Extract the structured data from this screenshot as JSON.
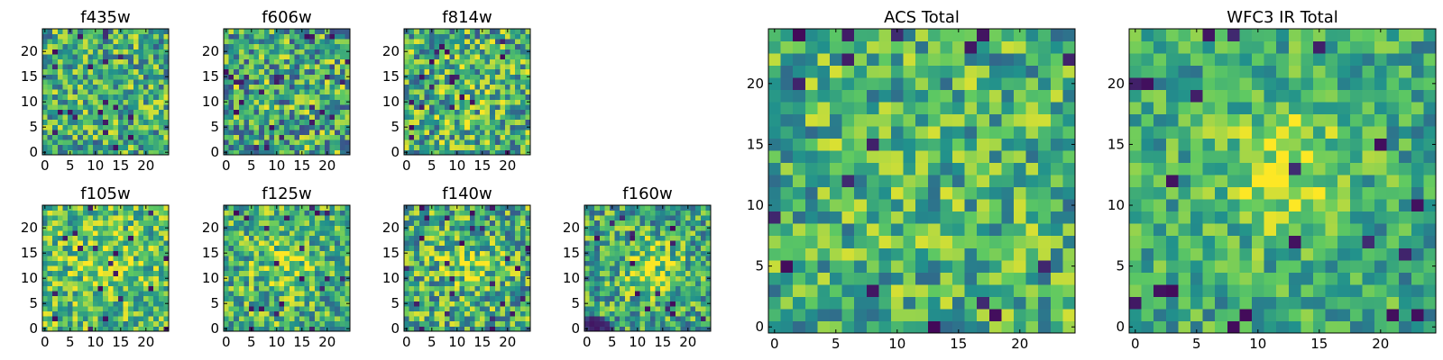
{
  "figure": {
    "colormap": "viridis",
    "colormap_stops": [
      "#440154",
      "#3b528b",
      "#21918c",
      "#5ec962",
      "#fde725"
    ]
  },
  "chart_data": [
    {
      "type": "heatmap",
      "title": "f435w",
      "grid_size": 25,
      "xticks": [
        "0",
        "5",
        "10",
        "15",
        "20"
      ],
      "yticks": [
        "0",
        "5",
        "10",
        "15",
        "20"
      ],
      "xlim": [
        -0.5,
        24.5
      ],
      "ylim": [
        -0.5,
        24.5
      ],
      "seed": 11,
      "base": 0.62,
      "noise": 0.34,
      "blob": 0.0,
      "blob_center": [
        12,
        12
      ],
      "blob_width": 6,
      "corner_dark": 0
    },
    {
      "type": "heatmap",
      "title": "f606w",
      "grid_size": 25,
      "xticks": [
        "0",
        "5",
        "10",
        "15",
        "20"
      ],
      "yticks": [
        "0",
        "5",
        "10",
        "15",
        "20"
      ],
      "xlim": [
        -0.5,
        24.5
      ],
      "ylim": [
        -0.5,
        24.5
      ],
      "seed": 23,
      "base": 0.6,
      "noise": 0.38,
      "blob": 0.0,
      "blob_center": [
        12,
        12
      ],
      "blob_width": 6,
      "corner_dark": 0
    },
    {
      "type": "heatmap",
      "title": "f814w",
      "grid_size": 25,
      "xticks": [
        "0",
        "5",
        "10",
        "15",
        "20"
      ],
      "yticks": [
        "0",
        "5",
        "10",
        "15",
        "20"
      ],
      "xlim": [
        -0.5,
        24.5
      ],
      "ylim": [
        -0.5,
        24.5
      ],
      "seed": 37,
      "base": 0.62,
      "noise": 0.36,
      "blob": 0.05,
      "blob_center": [
        12,
        12
      ],
      "blob_width": 6,
      "corner_dark": 0
    },
    {
      "type": "heatmap",
      "title": "f105w",
      "grid_size": 25,
      "xticks": [
        "0",
        "5",
        "10",
        "15",
        "20"
      ],
      "yticks": [
        "0",
        "5",
        "10",
        "15",
        "20"
      ],
      "xlim": [
        -0.5,
        24.5
      ],
      "ylim": [
        -0.5,
        24.5
      ],
      "seed": 41,
      "base": 0.68,
      "noise": 0.3,
      "blob": 0.12,
      "blob_center": [
        12,
        14
      ],
      "blob_width": 5,
      "corner_dark": 0
    },
    {
      "type": "heatmap",
      "title": "f125w",
      "grid_size": 25,
      "xticks": [
        "0",
        "5",
        "10",
        "15",
        "20"
      ],
      "yticks": [
        "0",
        "5",
        "10",
        "15",
        "20"
      ],
      "xlim": [
        -0.5,
        24.5
      ],
      "ylim": [
        -0.5,
        24.5
      ],
      "seed": 53,
      "base": 0.64,
      "noise": 0.32,
      "blob": 0.2,
      "blob_center": [
        12,
        13
      ],
      "blob_width": 4,
      "corner_dark": 0
    },
    {
      "type": "heatmap",
      "title": "f140w",
      "grid_size": 25,
      "xticks": [
        "0",
        "5",
        "10",
        "15",
        "20"
      ],
      "yticks": [
        "0",
        "5",
        "10",
        "15",
        "20"
      ],
      "xlim": [
        -0.5,
        24.5
      ],
      "ylim": [
        -0.5,
        24.5
      ],
      "seed": 67,
      "base": 0.62,
      "noise": 0.34,
      "blob": 0.18,
      "blob_center": [
        12,
        13
      ],
      "blob_width": 4,
      "corner_dark": 0
    },
    {
      "type": "heatmap",
      "title": "f160w",
      "grid_size": 25,
      "xticks": [
        "0",
        "5",
        "10",
        "15",
        "20"
      ],
      "yticks": [
        "0",
        "5",
        "10",
        "15",
        "20"
      ],
      "xlim": [
        -0.5,
        24.5
      ],
      "ylim": [
        -0.5,
        24.5
      ],
      "seed": 79,
      "base": 0.6,
      "noise": 0.32,
      "blob": 0.25,
      "blob_center": [
        13,
        12
      ],
      "blob_width": 4,
      "corner_dark": 1
    },
    {
      "type": "heatmap",
      "title": "ACS Total",
      "grid_size": 25,
      "xticks": [
        "0",
        "5",
        "10",
        "15",
        "20"
      ],
      "yticks": [
        "0",
        "5",
        "10",
        "15",
        "20"
      ],
      "xlim": [
        -0.5,
        24.5
      ],
      "ylim": [
        -0.5,
        24.5
      ],
      "seed": 97,
      "base": 0.63,
      "noise": 0.3,
      "blob": 0.04,
      "blob_center": [
        12,
        12
      ],
      "blob_width": 6,
      "corner_dark": 0
    },
    {
      "type": "heatmap",
      "title": "WFC3 IR Total",
      "grid_size": 25,
      "xticks": [
        "0",
        "5",
        "10",
        "15",
        "20"
      ],
      "yticks": [
        "0",
        "5",
        "10",
        "15",
        "20"
      ],
      "xlim": [
        -0.5,
        24.5
      ],
      "ylim": [
        -0.5,
        24.5
      ],
      "seed": 113,
      "base": 0.6,
      "noise": 0.24,
      "blob": 0.3,
      "blob_center": [
        12,
        13
      ],
      "blob_width": 4,
      "corner_dark": 0
    }
  ]
}
